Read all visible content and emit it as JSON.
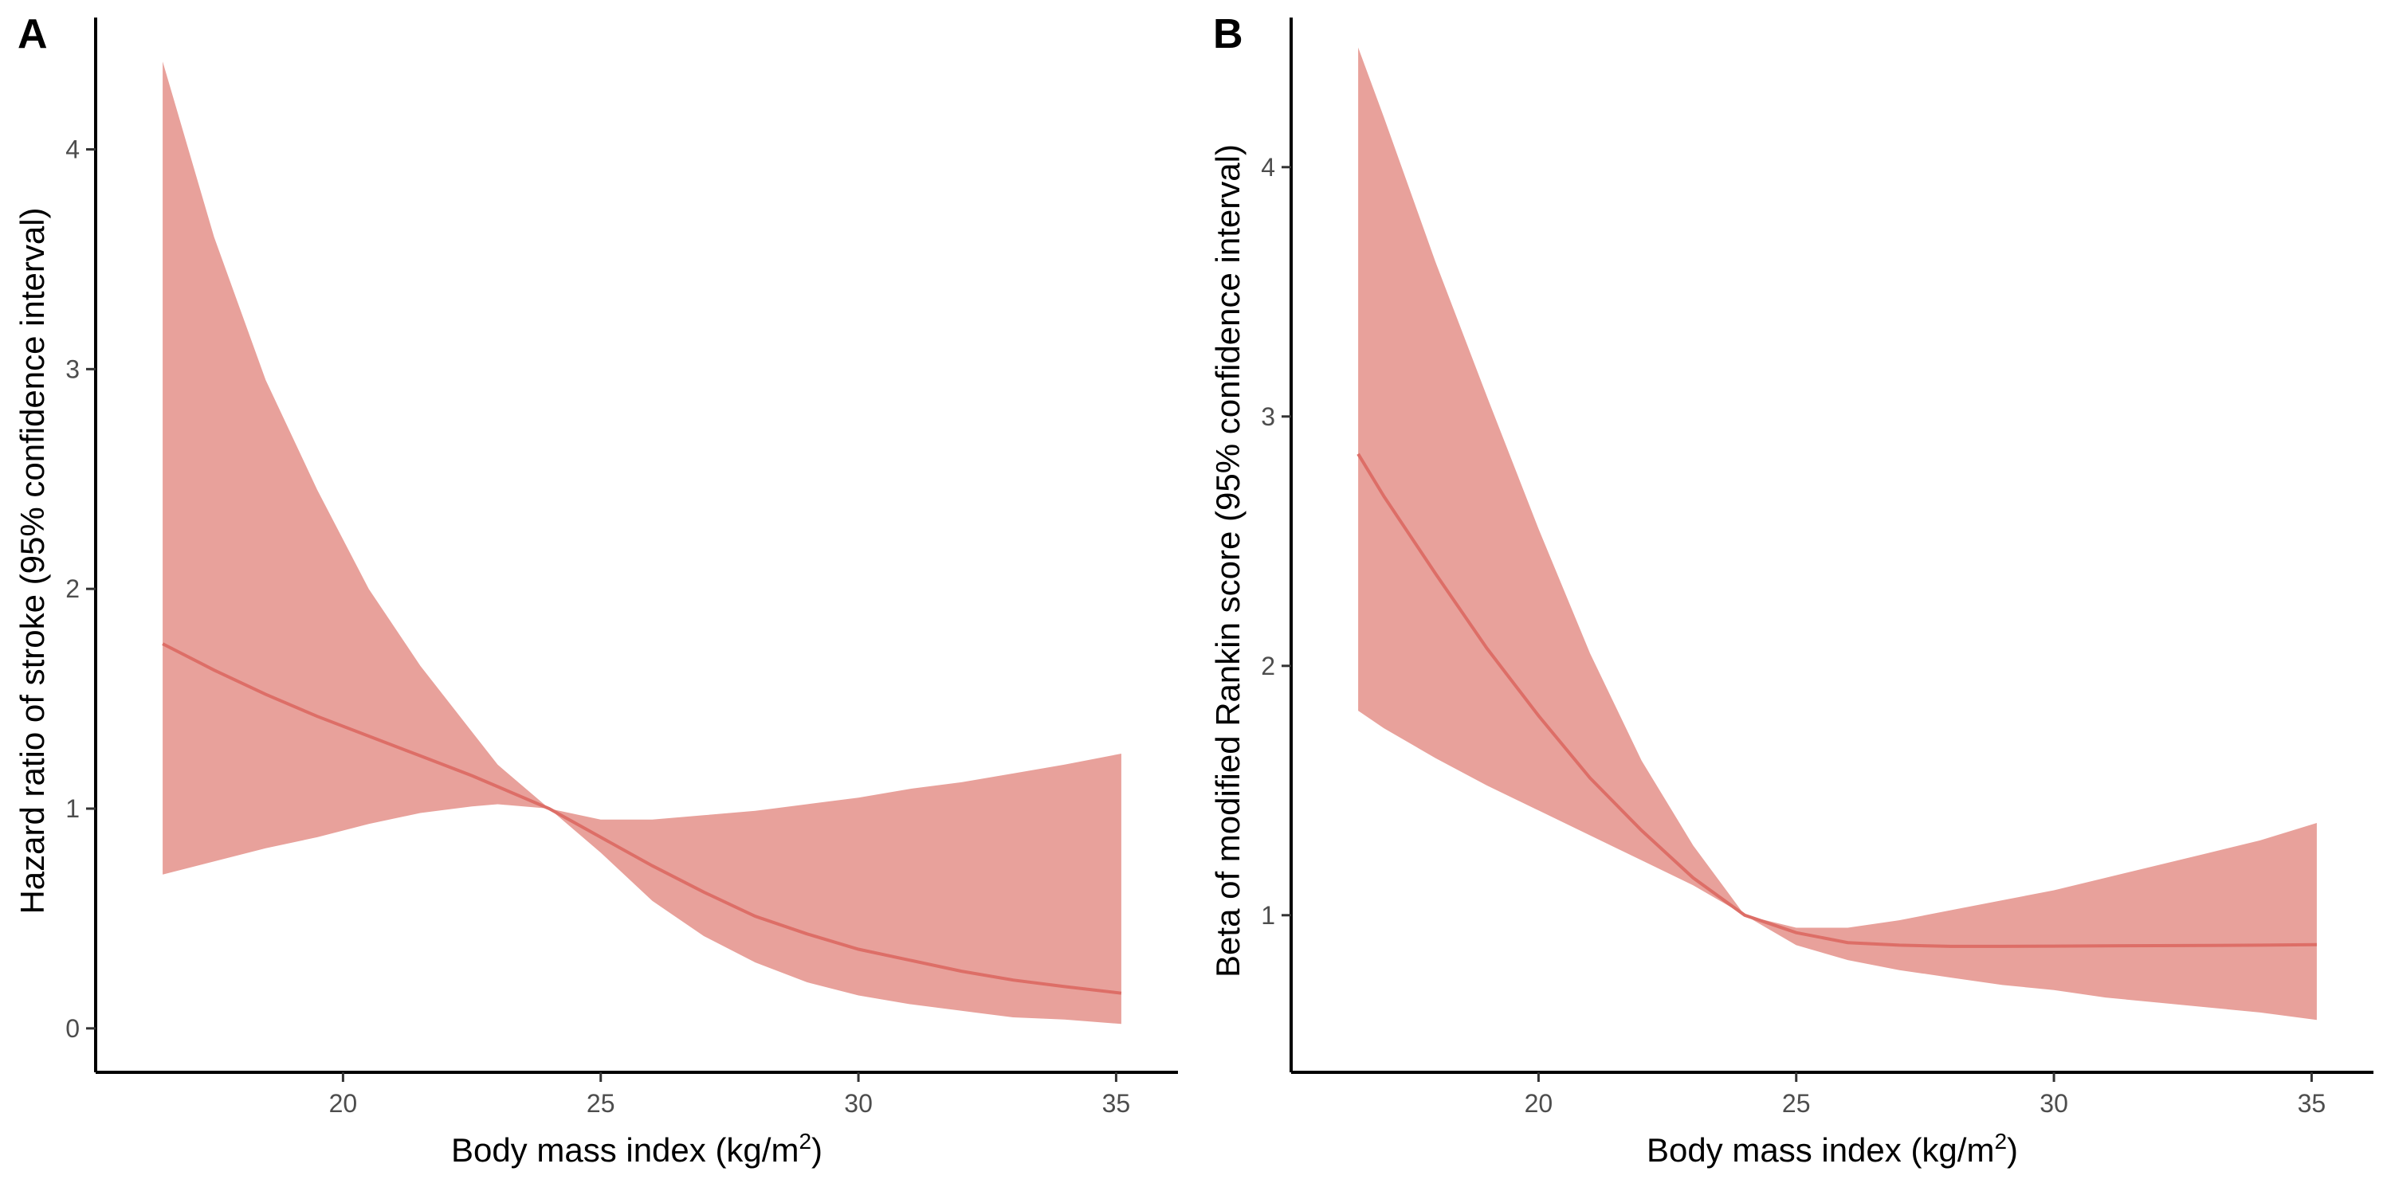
{
  "colors": {
    "band": "#e8a19b",
    "line": "#dd6e67",
    "axis": "#000000",
    "tick_text": "#4d4d4d"
  },
  "chart_data": [
    {
      "panel": "A",
      "type": "line",
      "xlabel_main": "Body mass index (kg/m",
      "xlabel_sup": "2",
      "xlabel_end": ")",
      "ylabel": "Hazard ratio of stroke (95% confidence interval)",
      "xlim": [
        15.2,
        36.2
      ],
      "ylim": [
        -0.2,
        4.6
      ],
      "xticks": [
        20,
        25,
        30,
        35
      ],
      "yticks": [
        0,
        1,
        2,
        3,
        4
      ],
      "x": [
        16.5,
        17.5,
        18.5,
        19.5,
        20.5,
        21.5,
        22.5,
        23,
        24,
        25,
        26,
        27,
        28,
        29,
        30,
        31,
        32,
        33,
        34,
        35.1
      ],
      "y": [
        1.75,
        1.63,
        1.52,
        1.42,
        1.33,
        1.24,
        1.15,
        1.1,
        1.0,
        0.87,
        0.74,
        0.62,
        0.51,
        0.43,
        0.36,
        0.31,
        0.26,
        0.22,
        0.19,
        0.16
      ],
      "lower": [
        0.7,
        0.76,
        0.82,
        0.87,
        0.93,
        0.98,
        1.01,
        1.02,
        1.0,
        0.8,
        0.58,
        0.42,
        0.3,
        0.21,
        0.15,
        0.11,
        0.08,
        0.05,
        0.04,
        0.02
      ],
      "upper": [
        4.4,
        3.6,
        2.95,
        2.45,
        2.0,
        1.65,
        1.35,
        1.2,
        1.0,
        0.95,
        0.95,
        0.97,
        0.99,
        1.02,
        1.05,
        1.09,
        1.12,
        1.16,
        1.2,
        1.25
      ]
    },
    {
      "panel": "B",
      "type": "line",
      "xlabel_main": "Body mass index (kg/m",
      "xlabel_sup": "2",
      "xlabel_end": ")",
      "ylabel": "Beta of modified Rankin score (95% confidence interval)",
      "xlim": [
        15.2,
        36.2
      ],
      "ylim": [
        0.37,
        4.6
      ],
      "xticks": [
        20,
        25,
        30,
        35
      ],
      "yticks": [
        1,
        2,
        3,
        4
      ],
      "x": [
        16.5,
        17,
        18,
        19,
        20,
        21,
        22,
        23,
        24,
        25,
        26,
        27,
        28,
        29,
        30,
        31,
        32,
        33,
        34,
        35.1
      ],
      "y": [
        2.85,
        2.68,
        2.37,
        2.07,
        1.8,
        1.55,
        1.34,
        1.15,
        1.0,
        0.93,
        0.89,
        0.88,
        0.875,
        0.875,
        0.876,
        0.877,
        0.878,
        0.879,
        0.88,
        0.882
      ],
      "lower": [
        1.82,
        1.75,
        1.63,
        1.52,
        1.42,
        1.32,
        1.22,
        1.12,
        1.0,
        0.88,
        0.82,
        0.78,
        0.75,
        0.72,
        0.7,
        0.67,
        0.65,
        0.63,
        0.61,
        0.58
      ],
      "upper": [
        4.48,
        4.2,
        3.62,
        3.08,
        2.55,
        2.05,
        1.62,
        1.28,
        1.0,
        0.95,
        0.95,
        0.98,
        1.02,
        1.06,
        1.1,
        1.15,
        1.2,
        1.25,
        1.3,
        1.37
      ]
    }
  ]
}
